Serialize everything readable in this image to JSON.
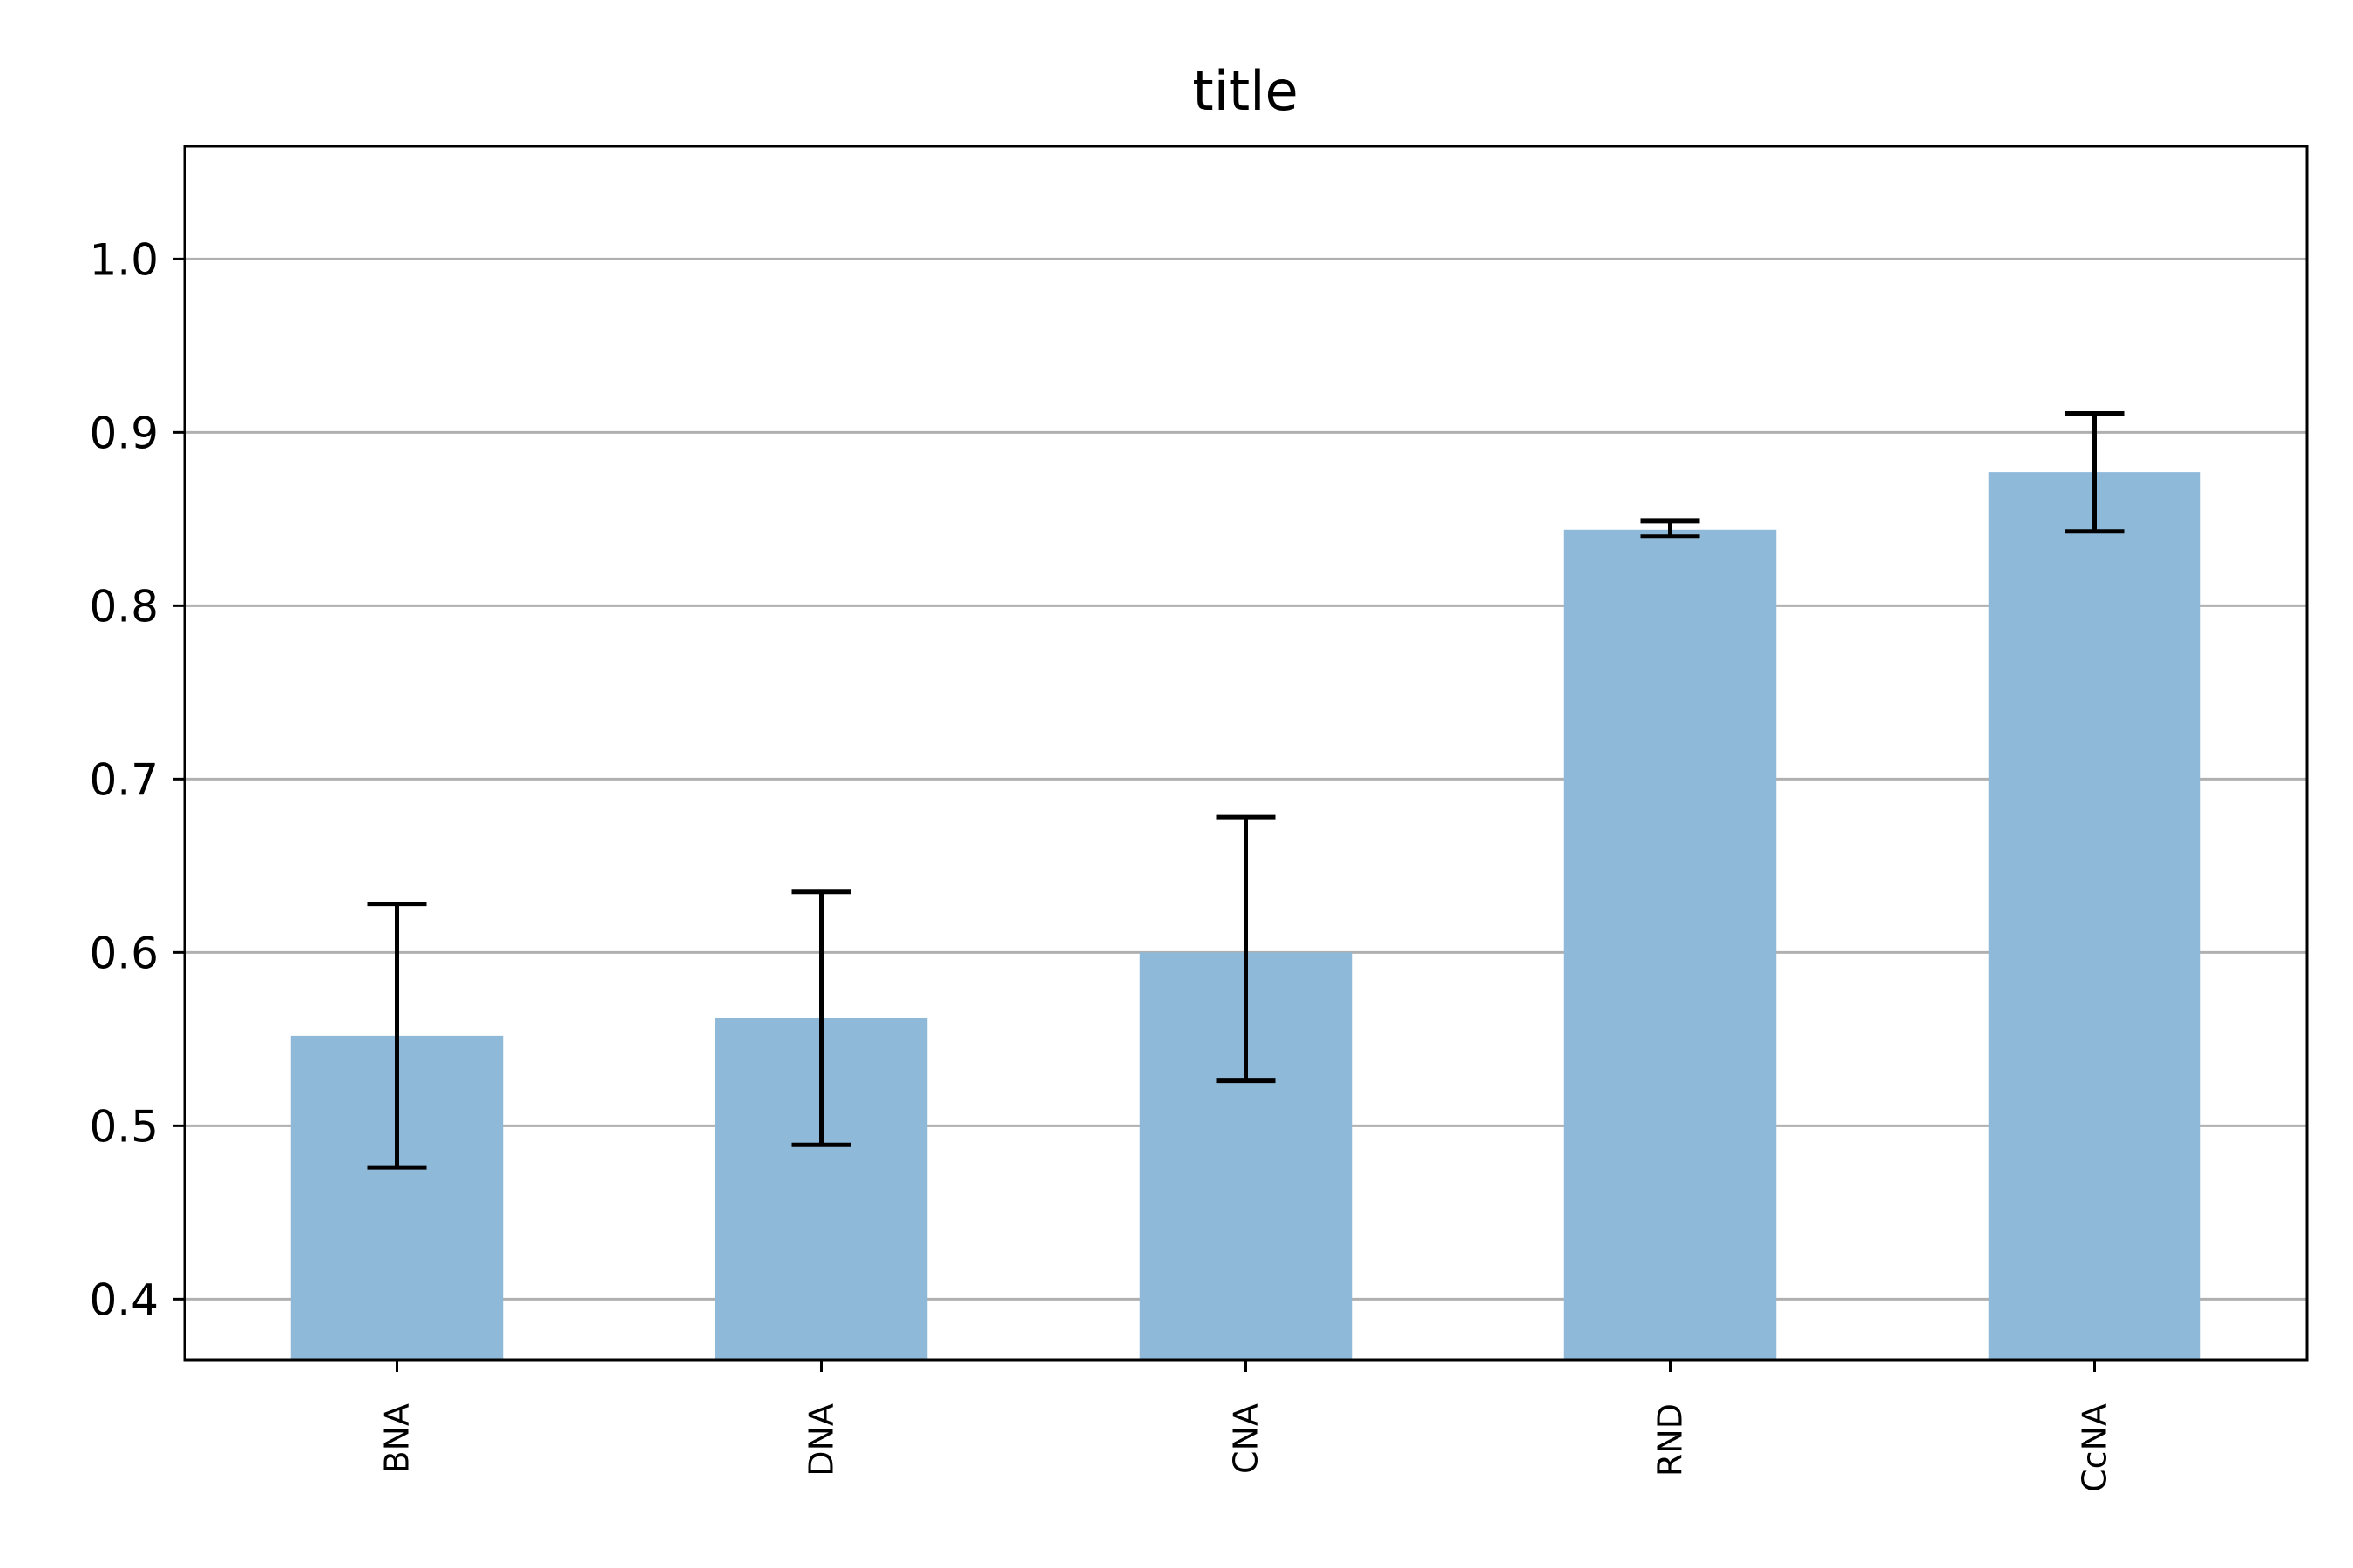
{
  "chart_data": {
    "type": "bar",
    "title": "title",
    "xlabel": "",
    "ylabel": "",
    "categories": [
      "BNA",
      "DNA",
      "CNA",
      "RND",
      "CcNA"
    ],
    "values": [
      0.552,
      0.562,
      0.6,
      0.844,
      0.877
    ],
    "error_low": [
      0.476,
      0.489,
      0.526,
      0.84,
      0.843
    ],
    "error_high": [
      0.628,
      0.635,
      0.678,
      0.849,
      0.911
    ],
    "ylim": [
      0.365,
      1.065
    ],
    "yticks": [
      "0.4",
      "0.5",
      "0.6",
      "0.7",
      "0.8",
      "0.9",
      "1.0"
    ],
    "grid": "horizontal",
    "colors": {
      "bar": "#8fb9d9",
      "error": "#000000",
      "grid": "#b0b0b0",
      "axes": "#000000"
    }
  }
}
